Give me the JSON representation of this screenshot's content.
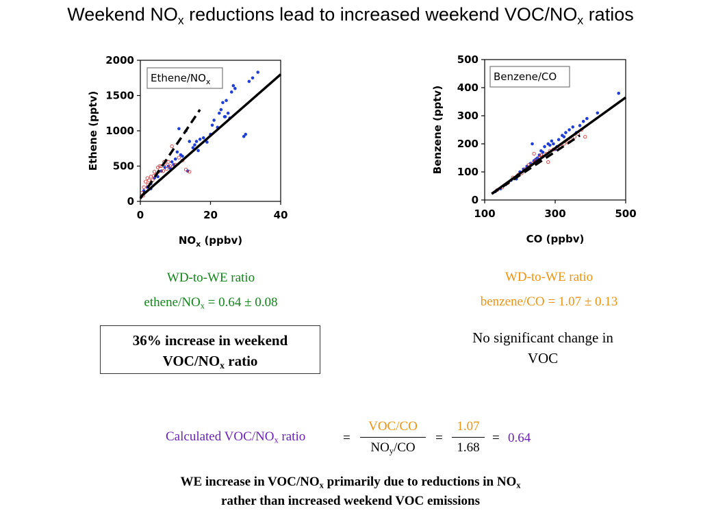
{
  "title": {
    "pre": "Weekend NO",
    "sub1": "x",
    "mid": " reductions lead to increased weekend VOC/NO",
    "sub2": "x",
    "post": " ratios"
  },
  "chart_data": [
    {
      "type": "scatter",
      "legend_box": "Ethene/NO",
      "legend_box_sub": "x",
      "xlabel": "NO",
      "xlabel_sub": "x",
      "xlabel_unit": " (ppbv)",
      "ylabel": "Ethene (pptv)",
      "xlim": [
        0,
        40
      ],
      "ylim": [
        0,
        2000
      ],
      "xticks": [
        "0",
        "20",
        "40"
      ],
      "yticks": [
        "0",
        "500",
        "1000",
        "1500",
        "2000"
      ],
      "series": [
        {
          "color": "#1f3fd6",
          "marker": "filled",
          "x": [
            1,
            2,
            3,
            4,
            6,
            7,
            8,
            9,
            9.5,
            10,
            10.5,
            11,
            12,
            13,
            14,
            15,
            15.5,
            16,
            17,
            18,
            19,
            20,
            21,
            22,
            23,
            23.5,
            24,
            24.5,
            25,
            25.5,
            26,
            27,
            29.5,
            30,
            31,
            32,
            33.5,
            3,
            5,
            8.5,
            11.5,
            13.5,
            16.5,
            20.5,
            22.5,
            24.2,
            26.5
          ],
          "y": [
            150,
            200,
            250,
            330,
            430,
            480,
            500,
            560,
            520,
            600,
            700,
            1030,
            640,
            1000,
            850,
            760,
            800,
            850,
            880,
            900,
            840,
            950,
            1150,
            1050,
            1300,
            1400,
            1200,
            1430,
            1250,
            1180,
            1550,
            1600,
            920,
            950,
            1700,
            1750,
            1830,
            180,
            350,
            470,
            660,
            430,
            720,
            1080,
            1250,
            1200,
            1640
          ]
        },
        {
          "color": "#d23b3b",
          "marker": "open",
          "x": [
            0.5,
            1,
            1.5,
            2,
            2.5,
            3,
            3.5,
            4,
            4.5,
            5,
            5.5,
            6,
            6.5,
            7,
            7.5,
            8,
            8.5,
            9,
            10,
            11,
            12,
            13,
            14,
            0.8,
            2.2,
            3.8,
            5.2,
            6.8
          ],
          "y": [
            120,
            200,
            280,
            330,
            300,
            350,
            300,
            420,
            380,
            480,
            500,
            500,
            430,
            530,
            460,
            560,
            500,
            780,
            520,
            620,
            580,
            450,
            420,
            80,
            240,
            360,
            420,
            560
          ]
        }
      ],
      "fit_lines": [
        {
          "style": "solid",
          "x": [
            0,
            40
          ],
          "y": [
            60,
            1800
          ]
        },
        {
          "style": "dashed",
          "x": [
            0,
            17
          ],
          "y": [
            40,
            1300
          ]
        }
      ]
    },
    {
      "type": "scatter",
      "legend_box": "Benzene/CO",
      "xlabel": "CO (ppbv)",
      "ylabel": "Benzene (pptv)",
      "xlim": [
        100,
        500
      ],
      "ylim": [
        0,
        500
      ],
      "xticks": [
        "100",
        "300",
        "500"
      ],
      "yticks": [
        "0",
        "100",
        "200",
        "300",
        "400",
        "500"
      ],
      "series": [
        {
          "color": "#1f3fd6",
          "marker": "filled",
          "x": [
            130,
            145,
            160,
            175,
            190,
            200,
            210,
            220,
            230,
            240,
            250,
            255,
            260,
            270,
            280,
            285,
            290,
            295,
            300,
            310,
            320,
            325,
            330,
            340,
            350,
            360,
            370,
            380,
            390,
            420,
            480,
            235,
            265,
            245,
            305
          ],
          "y": [
            30,
            40,
            55,
            70,
            75,
            100,
            110,
            120,
            130,
            140,
            150,
            160,
            175,
            190,
            200,
            195,
            210,
            200,
            180,
            215,
            230,
            225,
            240,
            250,
            260,
            240,
            265,
            280,
            290,
            310,
            380,
            200,
            170,
            145,
            190
          ]
        },
        {
          "color": "#d23b3b",
          "marker": "open",
          "x": [
            135,
            150,
            165,
            180,
            195,
            205,
            215,
            225,
            235,
            245,
            255,
            265,
            275,
            285,
            295,
            305,
            315,
            325,
            335,
            345,
            355,
            365,
            375,
            385,
            240,
            260,
            280
          ],
          "y": [
            35,
            45,
            60,
            80,
            90,
            95,
            110,
            125,
            130,
            140,
            150,
            155,
            165,
            175,
            180,
            185,
            190,
            200,
            205,
            215,
            225,
            235,
            250,
            225,
            165,
            160,
            135
          ]
        }
      ],
      "fit_lines": [
        {
          "style": "solid",
          "x": [
            120,
            500
          ],
          "y": [
            22,
            365
          ]
        },
        {
          "style": "dashed",
          "x": [
            120,
            370
          ],
          "y": [
            22,
            230
          ]
        }
      ]
    }
  ],
  "left_ratio": {
    "heading": "WD-to-WE ratio",
    "pre": "ethene/NO",
    "sub": "x",
    "post": " = 0.64 ± 0.08"
  },
  "right_ratio": {
    "heading": "WD-to-WE ratio",
    "text": "benzene/CO = 1.07 ± 0.13"
  },
  "box36": {
    "line1": "36% increase in weekend",
    "pre": "VOC/NO",
    "sub": "x",
    "post": " ratio"
  },
  "no_change": {
    "line1": "No significant change in",
    "line2": "VOC"
  },
  "calc": {
    "label_pre": "Calculated VOC/NO",
    "label_sub": "x",
    "label_post": " ratio",
    "eq": "=",
    "frac1_num": "VOC/CO",
    "frac1_den_pre": "NO",
    "frac1_den_sub": "y",
    "frac1_den_post": "/CO",
    "frac2_num": "1.07",
    "frac2_den": "1.68",
    "result": "0.64"
  },
  "bottom": {
    "l1_pre": "WE increase in VOC/NO",
    "l1_sub1": "x",
    "l1_mid": " primarily due to reductions in NO",
    "l1_sub2": "x",
    "line2": "rather than increased weekend VOC emissions"
  },
  "colors": {
    "green": "#12851a",
    "orange": "#f0930f",
    "purple": "#6a22b8",
    "blue_points": "#1f3fd6",
    "red_points": "#d23b3b"
  }
}
